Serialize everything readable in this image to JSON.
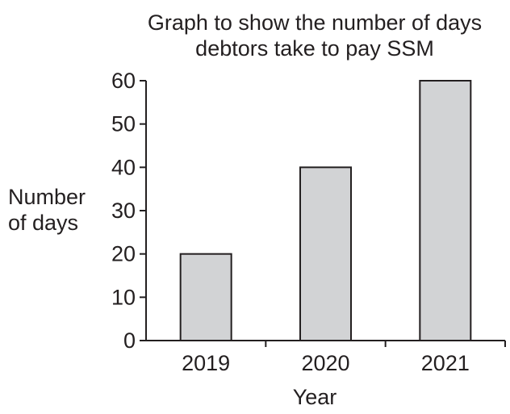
{
  "chart_data": {
    "type": "bar",
    "title_lines": [
      "Graph to show the number of days",
      "debtors take to pay SSM"
    ],
    "title": "Graph to show the number of days debtors take to pay SSM",
    "xlabel": "Year",
    "ylabel_lines": [
      "Number",
      "of days"
    ],
    "ylabel": "Number of days",
    "categories": [
      "2019",
      "2020",
      "2021"
    ],
    "values": [
      20,
      40,
      60
    ],
    "ylim": [
      0,
      60
    ],
    "yticks": [
      "0",
      "10",
      "20",
      "30",
      "40",
      "50",
      "60"
    ],
    "grid": false,
    "legend": "none",
    "colors": {
      "bar_fill": "#d2d3d5",
      "bar_stroke": "#231f20",
      "axis": "#231f20",
      "text": "#231f20"
    }
  }
}
